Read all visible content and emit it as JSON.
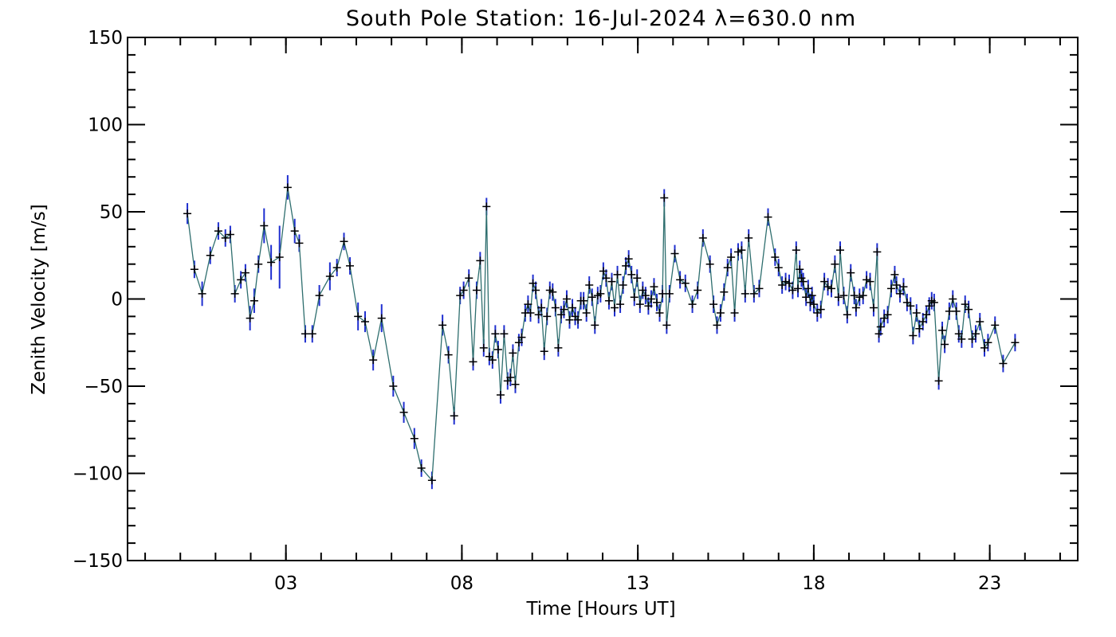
{
  "chart_data": {
    "type": "line",
    "title": "South Pole Station: 16-Jul-2024 λ=630.0 nm",
    "xlabel": "Time [Hours UT]",
    "ylabel": "Zenith Velocity [m/s]",
    "xlim": [
      -1.5,
      25.5
    ],
    "ylim": [
      -150,
      150
    ],
    "x_ticks": [
      {
        "value": 3,
        "label": "03"
      },
      {
        "value": 8,
        "label": "08"
      },
      {
        "value": 13,
        "label": "13"
      },
      {
        "value": 18,
        "label": "18"
      },
      {
        "value": 23,
        "label": "23"
      }
    ],
    "y_ticks": [
      {
        "value": -150,
        "label": "−150"
      },
      {
        "value": -100,
        "label": "−100"
      },
      {
        "value": -50,
        "label": "−50"
      },
      {
        "value": 0,
        "label": "0"
      },
      {
        "value": 50,
        "label": "50"
      },
      {
        "value": 100,
        "label": "100"
      },
      {
        "value": 150,
        "label": "150"
      }
    ],
    "grid": false,
    "series": [
      {
        "line_color": "#2e6e6e",
        "marker": "plus",
        "error_bar_color": "#1f2fd0",
        "points": [
          {
            "x": 0.2,
            "y": 49,
            "err": 6
          },
          {
            "x": 0.4,
            "y": 17,
            "err": 5
          },
          {
            "x": 0.62,
            "y": 3,
            "err": 7
          },
          {
            "x": 0.85,
            "y": 25,
            "err": 5
          },
          {
            "x": 1.08,
            "y": 39,
            "err": 5
          },
          {
            "x": 1.28,
            "y": 35,
            "err": 5
          },
          {
            "x": 1.42,
            "y": 37,
            "err": 5
          },
          {
            "x": 1.55,
            "y": 3,
            "err": 5
          },
          {
            "x": 1.72,
            "y": 11,
            "err": 5
          },
          {
            "x": 1.85,
            "y": 15,
            "err": 5
          },
          {
            "x": 1.98,
            "y": -11,
            "err": 7
          },
          {
            "x": 2.1,
            "y": -1,
            "err": 7
          },
          {
            "x": 2.22,
            "y": 20,
            "err": 5
          },
          {
            "x": 2.38,
            "y": 42,
            "err": 10
          },
          {
            "x": 2.58,
            "y": 21,
            "err": 10
          },
          {
            "x": 2.82,
            "y": 24,
            "err": 18
          },
          {
            "x": 3.05,
            "y": 64,
            "err": 7
          },
          {
            "x": 3.25,
            "y": 39,
            "err": 7
          },
          {
            "x": 3.38,
            "y": 32,
            "err": 5
          },
          {
            "x": 3.55,
            "y": -20,
            "err": 5
          },
          {
            "x": 3.75,
            "y": -20,
            "err": 5
          },
          {
            "x": 3.95,
            "y": 2,
            "err": 6
          },
          {
            "x": 4.25,
            "y": 13,
            "err": 8
          },
          {
            "x": 4.45,
            "y": 18,
            "err": 5
          },
          {
            "x": 4.65,
            "y": 33,
            "err": 5
          },
          {
            "x": 4.82,
            "y": 19,
            "err": 5
          },
          {
            "x": 5.05,
            "y": -10,
            "err": 8
          },
          {
            "x": 5.25,
            "y": -13,
            "err": 6
          },
          {
            "x": 5.48,
            "y": -35,
            "err": 6
          },
          {
            "x": 5.72,
            "y": -11,
            "err": 8
          },
          {
            "x": 6.05,
            "y": -50,
            "err": 6
          },
          {
            "x": 6.35,
            "y": -65,
            "err": 6
          },
          {
            "x": 6.65,
            "y": -80,
            "err": 6
          },
          {
            "x": 6.85,
            "y": -97,
            "err": 5
          },
          {
            "x": 7.15,
            "y": -104,
            "err": 5
          },
          {
            "x": 7.45,
            "y": -15,
            "err": 6
          },
          {
            "x": 7.62,
            "y": -32,
            "err": 5
          },
          {
            "x": 7.78,
            "y": -67,
            "err": 5
          },
          {
            "x": 7.95,
            "y": 2,
            "err": 5
          },
          {
            "x": 8.05,
            "y": 5,
            "err": 5
          },
          {
            "x": 8.2,
            "y": 12,
            "err": 5
          },
          {
            "x": 8.32,
            "y": -36,
            "err": 5
          },
          {
            "x": 8.42,
            "y": 5,
            "err": 5
          },
          {
            "x": 8.52,
            "y": 22,
            "err": 5
          },
          {
            "x": 8.62,
            "y": -28,
            "err": 5
          },
          {
            "x": 8.7,
            "y": 53,
            "err": 5
          },
          {
            "x": 8.78,
            "y": -33,
            "err": 5
          },
          {
            "x": 8.87,
            "y": -35,
            "err": 5
          },
          {
            "x": 8.95,
            "y": -20,
            "err": 5
          },
          {
            "x": 9.03,
            "y": -29,
            "err": 5
          },
          {
            "x": 9.1,
            "y": -55,
            "err": 5
          },
          {
            "x": 9.2,
            "y": -20,
            "err": 5
          },
          {
            "x": 9.3,
            "y": -47,
            "err": 5
          },
          {
            "x": 9.38,
            "y": -45,
            "err": 5
          },
          {
            "x": 9.45,
            "y": -31,
            "err": 5
          },
          {
            "x": 9.52,
            "y": -49,
            "err": 5
          },
          {
            "x": 9.62,
            "y": -25,
            "err": 5
          },
          {
            "x": 9.7,
            "y": -22,
            "err": 5
          },
          {
            "x": 9.8,
            "y": -8,
            "err": 5
          },
          {
            "x": 9.88,
            "y": -3,
            "err": 5
          },
          {
            "x": 9.95,
            "y": -8,
            "err": 5
          },
          {
            "x": 10.02,
            "y": 9,
            "err": 5
          },
          {
            "x": 10.1,
            "y": 5,
            "err": 5
          },
          {
            "x": 10.18,
            "y": -9,
            "err": 5
          },
          {
            "x": 10.26,
            "y": -5,
            "err": 5
          },
          {
            "x": 10.34,
            "y": -30,
            "err": 5
          },
          {
            "x": 10.42,
            "y": -10,
            "err": 5
          },
          {
            "x": 10.5,
            "y": 5,
            "err": 5
          },
          {
            "x": 10.58,
            "y": 4,
            "err": 5
          },
          {
            "x": 10.66,
            "y": -5,
            "err": 5
          },
          {
            "x": 10.74,
            "y": -28,
            "err": 5
          },
          {
            "x": 10.82,
            "y": -9,
            "err": 5
          },
          {
            "x": 10.9,
            "y": -6,
            "err": 5
          },
          {
            "x": 10.98,
            "y": 0,
            "err": 5
          },
          {
            "x": 11.06,
            "y": -12,
            "err": 5
          },
          {
            "x": 11.14,
            "y": -5,
            "err": 5
          },
          {
            "x": 11.22,
            "y": -10,
            "err": 5
          },
          {
            "x": 11.3,
            "y": -12,
            "err": 5
          },
          {
            "x": 11.38,
            "y": -1,
            "err": 5
          },
          {
            "x": 11.46,
            "y": -1,
            "err": 5
          },
          {
            "x": 11.54,
            "y": -8,
            "err": 5
          },
          {
            "x": 11.62,
            "y": 8,
            "err": 5
          },
          {
            "x": 11.7,
            "y": 1,
            "err": 5
          },
          {
            "x": 11.78,
            "y": -15,
            "err": 5
          },
          {
            "x": 11.86,
            "y": 2,
            "err": 5
          },
          {
            "x": 11.94,
            "y": 3,
            "err": 5
          },
          {
            "x": 12.02,
            "y": 16,
            "err": 5
          },
          {
            "x": 12.1,
            "y": 12,
            "err": 5
          },
          {
            "x": 12.18,
            "y": -1,
            "err": 5
          },
          {
            "x": 12.26,
            "y": 10,
            "err": 5
          },
          {
            "x": 12.34,
            "y": -5,
            "err": 5
          },
          {
            "x": 12.42,
            "y": 14,
            "err": 5
          },
          {
            "x": 12.5,
            "y": -3,
            "err": 5
          },
          {
            "x": 12.58,
            "y": 8,
            "err": 5
          },
          {
            "x": 12.66,
            "y": 19,
            "err": 5
          },
          {
            "x": 12.74,
            "y": 23,
            "err": 5
          },
          {
            "x": 12.82,
            "y": 14,
            "err": 5
          },
          {
            "x": 12.9,
            "y": 1,
            "err": 5
          },
          {
            "x": 12.98,
            "y": 12,
            "err": 5
          },
          {
            "x": 13.06,
            "y": -3,
            "err": 5
          },
          {
            "x": 13.14,
            "y": 5,
            "err": 5
          },
          {
            "x": 13.22,
            "y": 2,
            "err": 5
          },
          {
            "x": 13.3,
            "y": -4,
            "err": 5
          },
          {
            "x": 13.38,
            "y": 0,
            "err": 5
          },
          {
            "x": 13.46,
            "y": 7,
            "err": 5
          },
          {
            "x": 13.54,
            "y": -2,
            "err": 5
          },
          {
            "x": 13.62,
            "y": -8,
            "err": 5
          },
          {
            "x": 13.7,
            "y": 3,
            "err": 5
          },
          {
            "x": 13.75,
            "y": 58,
            "err": 5
          },
          {
            "x": 13.82,
            "y": -15,
            "err": 5
          },
          {
            "x": 13.9,
            "y": 3,
            "err": 5
          },
          {
            "x": 14.05,
            "y": 26,
            "err": 5
          },
          {
            "x": 14.2,
            "y": 11,
            "err": 5
          },
          {
            "x": 14.35,
            "y": 9,
            "err": 5
          },
          {
            "x": 14.55,
            "y": -3,
            "err": 5
          },
          {
            "x": 14.7,
            "y": 5,
            "err": 5
          },
          {
            "x": 14.85,
            "y": 35,
            "err": 5
          },
          {
            "x": 15.05,
            "y": 20,
            "err": 5
          },
          {
            "x": 15.15,
            "y": -3,
            "err": 5
          },
          {
            "x": 15.25,
            "y": -15,
            "err": 5
          },
          {
            "x": 15.35,
            "y": -8,
            "err": 5
          },
          {
            "x": 15.45,
            "y": 4,
            "err": 5
          },
          {
            "x": 15.55,
            "y": 18,
            "err": 5
          },
          {
            "x": 15.65,
            "y": 24,
            "err": 5
          },
          {
            "x": 15.75,
            "y": -8,
            "err": 5
          },
          {
            "x": 15.85,
            "y": 27,
            "err": 5
          },
          {
            "x": 15.95,
            "y": 28,
            "err": 5
          },
          {
            "x": 16.05,
            "y": 3,
            "err": 5
          },
          {
            "x": 16.15,
            "y": 35,
            "err": 5
          },
          {
            "x": 16.3,
            "y": 3,
            "err": 5
          },
          {
            "x": 16.45,
            "y": 6,
            "err": 5
          },
          {
            "x": 16.7,
            "y": 47,
            "err": 5
          },
          {
            "x": 16.9,
            "y": 24,
            "err": 5
          },
          {
            "x": 17.0,
            "y": 18,
            "err": 5
          },
          {
            "x": 17.1,
            "y": 8,
            "err": 5
          },
          {
            "x": 17.2,
            "y": 10,
            "err": 5
          },
          {
            "x": 17.3,
            "y": 9,
            "err": 5
          },
          {
            "x": 17.4,
            "y": 5,
            "err": 5
          },
          {
            "x": 17.5,
            "y": 28,
            "err": 5
          },
          {
            "x": 17.55,
            "y": 6,
            "err": 5
          },
          {
            "x": 17.6,
            "y": 17,
            "err": 5
          },
          {
            "x": 17.65,
            "y": 12,
            "err": 5
          },
          {
            "x": 17.7,
            "y": 10,
            "err": 5
          },
          {
            "x": 17.78,
            "y": 1,
            "err": 5
          },
          {
            "x": 17.84,
            "y": 6,
            "err": 5
          },
          {
            "x": 17.9,
            "y": -2,
            "err": 5
          },
          {
            "x": 17.95,
            "y": 2,
            "err": 5
          },
          {
            "x": 18.0,
            "y": -3,
            "err": 5
          },
          {
            "x": 18.1,
            "y": -8,
            "err": 5
          },
          {
            "x": 18.2,
            "y": -6,
            "err": 5
          },
          {
            "x": 18.3,
            "y": 10,
            "err": 5
          },
          {
            "x": 18.4,
            "y": 7,
            "err": 5
          },
          {
            "x": 18.5,
            "y": 6,
            "err": 5
          },
          {
            "x": 18.6,
            "y": 20,
            "err": 5
          },
          {
            "x": 18.7,
            "y": 1,
            "err": 5
          },
          {
            "x": 18.75,
            "y": 28,
            "err": 5
          },
          {
            "x": 18.85,
            "y": 2,
            "err": 5
          },
          {
            "x": 18.95,
            "y": -9,
            "err": 5
          },
          {
            "x": 19.05,
            "y": 15,
            "err": 5
          },
          {
            "x": 19.15,
            "y": 2,
            "err": 5
          },
          {
            "x": 19.2,
            "y": -5,
            "err": 5
          },
          {
            "x": 19.3,
            "y": 1,
            "err": 5
          },
          {
            "x": 19.4,
            "y": 2,
            "err": 5
          },
          {
            "x": 19.5,
            "y": 11,
            "err": 5
          },
          {
            "x": 19.6,
            "y": 10,
            "err": 5
          },
          {
            "x": 19.7,
            "y": -5,
            "err": 5
          },
          {
            "x": 19.8,
            "y": 27,
            "err": 5
          },
          {
            "x": 19.85,
            "y": -20,
            "err": 5
          },
          {
            "x": 19.9,
            "y": -16,
            "err": 5
          },
          {
            "x": 20.0,
            "y": -11,
            "err": 5
          },
          {
            "x": 20.1,
            "y": -9,
            "err": 5
          },
          {
            "x": 20.2,
            "y": 6,
            "err": 5
          },
          {
            "x": 20.3,
            "y": 14,
            "err": 5
          },
          {
            "x": 20.35,
            "y": 8,
            "err": 5
          },
          {
            "x": 20.45,
            "y": 3,
            "err": 5
          },
          {
            "x": 20.55,
            "y": 7,
            "err": 5
          },
          {
            "x": 20.65,
            "y": -2,
            "err": 5
          },
          {
            "x": 20.75,
            "y": -4,
            "err": 5
          },
          {
            "x": 20.82,
            "y": -21,
            "err": 5
          },
          {
            "x": 20.92,
            "y": -8,
            "err": 5
          },
          {
            "x": 21.0,
            "y": -17,
            "err": 5
          },
          {
            "x": 21.1,
            "y": -13,
            "err": 5
          },
          {
            "x": 21.2,
            "y": -9,
            "err": 5
          },
          {
            "x": 21.28,
            "y": -4,
            "err": 5
          },
          {
            "x": 21.35,
            "y": -1,
            "err": 5
          },
          {
            "x": 21.42,
            "y": -2,
            "err": 5
          },
          {
            "x": 21.55,
            "y": -47,
            "err": 5
          },
          {
            "x": 21.65,
            "y": -18,
            "err": 5
          },
          {
            "x": 21.72,
            "y": -26,
            "err": 5
          },
          {
            "x": 21.85,
            "y": -7,
            "err": 5
          },
          {
            "x": 21.95,
            "y": 0,
            "err": 5
          },
          {
            "x": 22.05,
            "y": -7,
            "err": 5
          },
          {
            "x": 22.12,
            "y": -20,
            "err": 5
          },
          {
            "x": 22.2,
            "y": -23,
            "err": 5
          },
          {
            "x": 22.3,
            "y": -3,
            "err": 5
          },
          {
            "x": 22.4,
            "y": -6,
            "err": 5
          },
          {
            "x": 22.5,
            "y": -23,
            "err": 5
          },
          {
            "x": 22.6,
            "y": -20,
            "err": 5
          },
          {
            "x": 22.72,
            "y": -13,
            "err": 5
          },
          {
            "x": 22.85,
            "y": -28,
            "err": 5
          },
          {
            "x": 22.95,
            "y": -25,
            "err": 5
          },
          {
            "x": 23.15,
            "y": -15,
            "err": 5
          },
          {
            "x": 23.38,
            "y": -37,
            "err": 5
          },
          {
            "x": 23.72,
            "y": -25,
            "err": 5
          }
        ]
      }
    ]
  }
}
